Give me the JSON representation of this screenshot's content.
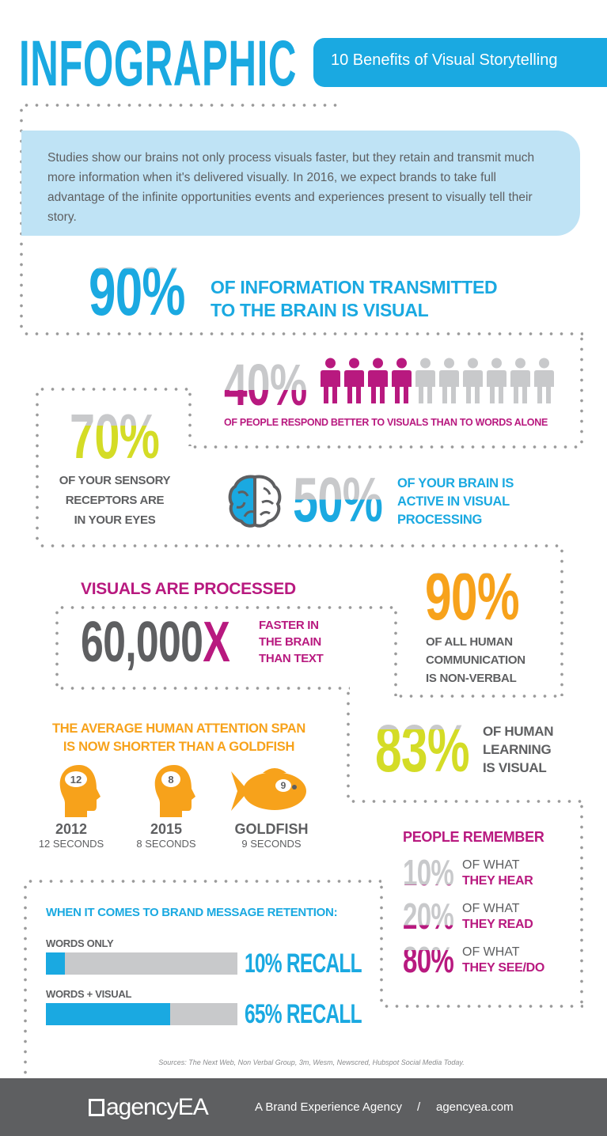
{
  "header": {
    "title": "INFOGRAPHIC",
    "subtitle": "10 Benefits of Visual Storytelling"
  },
  "intro": "Studies show our brains not only process visuals faster, but they retain and transmit much more information when it's delivered visually. In 2016, we expect brands to take full advantage of the infinite opportunities events and experiences present to visually tell their story.",
  "colors": {
    "blue": "#1aa9e1",
    "magenta": "#b8197f",
    "yellow": "#d4dc26",
    "orange": "#f7a21b",
    "gray": "#5e5f61",
    "light_blue": "#bfe3f5",
    "fill_gray": "#c8c9cb"
  },
  "stats": {
    "s1": {
      "value": "90%",
      "fill": 90,
      "line1": "OF INFORMATION TRANSMITTED",
      "line2": "TO THE BRAIN IS VISUAL"
    },
    "s2": {
      "value": "40%",
      "fill": 40,
      "people_total": 10,
      "people_highlighted": 4,
      "caption": "OF PEOPLE RESPOND BETTER TO VISUALS THAN TO WORDS ALONE"
    },
    "s3": {
      "value": "70%",
      "fill": 70,
      "lines": [
        "OF YOUR SENSORY",
        "RECEPTORS ARE",
        "IN YOUR EYES"
      ]
    },
    "s4": {
      "value": "50%",
      "fill": 50,
      "icon": "brain-icon",
      "lines": [
        "OF YOUR BRAIN IS",
        "ACTIVE IN VISUAL",
        "PROCESSING"
      ]
    },
    "s5": {
      "heading": "VISUALS ARE PROCESSED",
      "value": "60,000",
      "x": "X",
      "lines": [
        "FASTER IN",
        "THE BRAIN",
        "THAN TEXT"
      ]
    },
    "s6": {
      "value": "90%",
      "fill": 90,
      "lines": [
        "OF ALL HUMAN",
        "COMMUNICATION",
        "IS NON-VERBAL"
      ]
    },
    "s7": {
      "heading1": "THE AVERAGE HUMAN ATTENTION SPAN",
      "heading2": "IS NOW SHORTER THAN A GOLDFISH",
      "items": [
        {
          "badge": "12",
          "label": "2012",
          "sub": "12 SECONDS",
          "icon": "head-icon"
        },
        {
          "badge": "8",
          "label": "2015",
          "sub": "8 SECONDS",
          "icon": "head-icon"
        },
        {
          "badge": "9",
          "label": "GOLDFISH",
          "sub": "9 SECONDS",
          "icon": "goldfish-icon"
        }
      ]
    },
    "s8": {
      "value": "83%",
      "fill": 83,
      "lines": [
        "OF HUMAN",
        "LEARNING",
        "IS VISUAL"
      ]
    },
    "s9": {
      "heading": "PEOPLE REMEMBER",
      "items": [
        {
          "value": "10%",
          "fill": 10,
          "top": "OF WHAT",
          "bottom": "THEY HEAR"
        },
        {
          "value": "20%",
          "fill": 20,
          "top": "OF WHAT",
          "bottom": "THEY READ"
        },
        {
          "value": "80%",
          "fill": 80,
          "top": "OF WHAT",
          "bottom": "THEY SEE/DO"
        }
      ]
    },
    "s10": {
      "heading": "WHEN IT COMES TO BRAND MESSAGE RETENTION:",
      "bars": [
        {
          "label": "WORDS ONLY",
          "value": 10,
          "text": "10% RECALL"
        },
        {
          "label": "WORDS + VISUAL",
          "value": 65,
          "text": "65% RECALL"
        }
      ]
    }
  },
  "sources": "Sources: The Next Web, Non Verbal Group, 3m, Wesm, Newscred, Hubspot Social Media Today.",
  "footer": {
    "logo": "agencyEA",
    "tagline": "A Brand Experience Agency",
    "sep": "/",
    "url": "agencyea.com"
  }
}
